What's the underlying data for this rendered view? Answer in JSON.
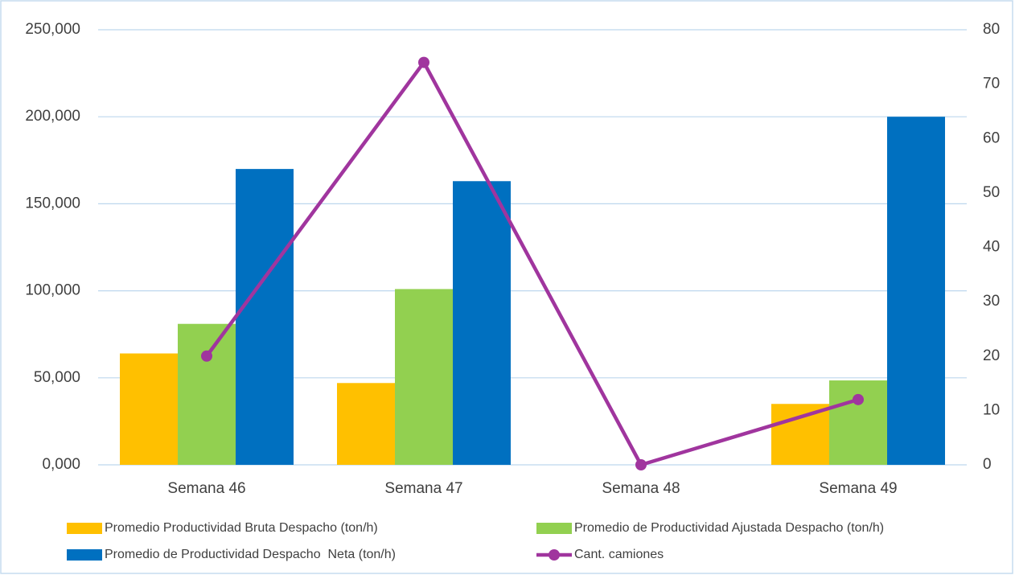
{
  "chart_data": {
    "type": "bar_line",
    "categories": [
      "Semana 46",
      "Semana 47",
      "Semana 48",
      "Semana 49"
    ],
    "series": [
      {
        "name": "Promedio Productividad Bruta Despacho (ton/h)",
        "color": "#FFC000",
        "type": "bar",
        "values": [
          64000,
          47000,
          0,
          35000
        ]
      },
      {
        "name": "Promedio de Productividad Ajustada Despacho (ton/h)",
        "color": "#92D050",
        "type": "bar",
        "values": [
          81000,
          101000,
          0,
          48500
        ]
      },
      {
        "name": "Promedio de Productividad Despacho  Neta (ton/h)",
        "color": "#0070C0",
        "type": "bar",
        "values": [
          170000,
          163000,
          0,
          200000
        ]
      },
      {
        "name": "Cant. camiones",
        "color": "#A0359E",
        "type": "line",
        "axis": "y2",
        "values": [
          20,
          74,
          0,
          12
        ]
      }
    ],
    "ylim": [
      0,
      250000
    ],
    "yticks": [
      {
        "value": 0,
        "label": "0,000"
      },
      {
        "value": 50000,
        "label": "50,000"
      },
      {
        "value": 100000,
        "label": "100,000"
      },
      {
        "value": 150000,
        "label": "150,000"
      },
      {
        "value": 200000,
        "label": "200,000"
      },
      {
        "value": 250000,
        "label": "250,000"
      }
    ],
    "y2lim": [
      0,
      80
    ],
    "y2ticks": [
      0,
      10,
      20,
      30,
      40,
      50,
      60,
      70,
      80
    ],
    "grid": true,
    "legend": "bottom"
  }
}
